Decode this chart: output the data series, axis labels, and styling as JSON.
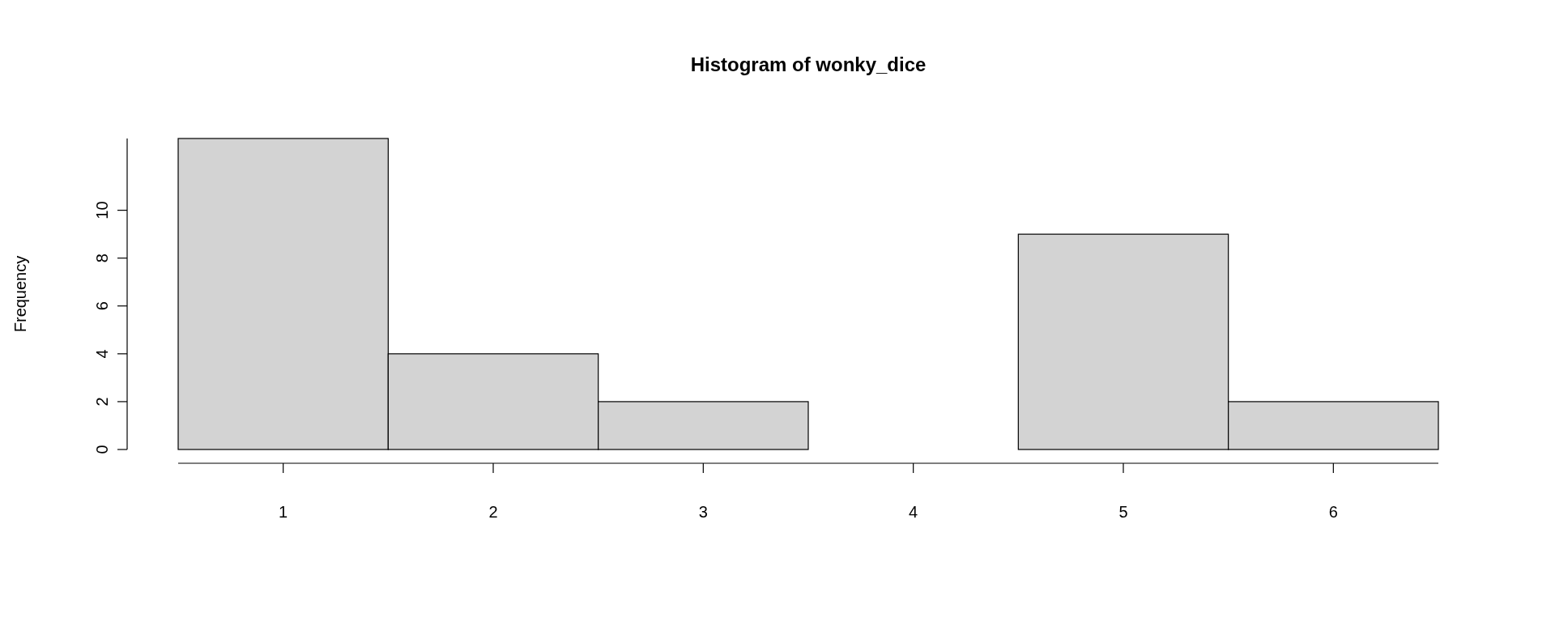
{
  "chart_data": {
    "type": "histogram",
    "title": "Histogram of wonky_dice",
    "ylabel": "Frequency",
    "bins": [
      0.5,
      1.5,
      2.5,
      3.5,
      4.5,
      5.5,
      6.5
    ],
    "values": [
      13,
      4,
      2,
      0,
      9,
      2
    ],
    "color": "#d3d3d3",
    "xlim": [
      0.5,
      6.5
    ],
    "xticks": [
      1,
      2,
      3,
      4,
      5,
      6
    ],
    "ylim": [
      0,
      13
    ],
    "yticks": [
      0,
      2,
      4,
      6,
      8,
      10
    ]
  }
}
